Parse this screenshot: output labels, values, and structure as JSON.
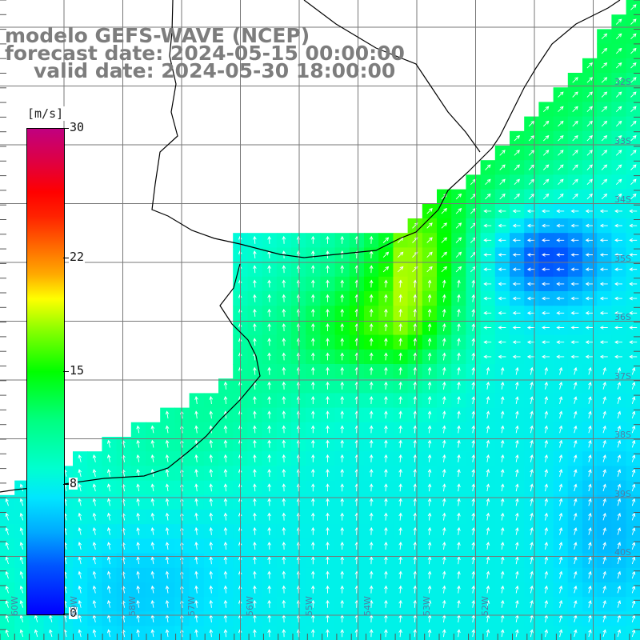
{
  "header": {
    "line1": "modelo GEFS-WAVE (NCEP)",
    "line2": "forecast date: 2024-05-15 00:00:00",
    "line3": "valid date: 2024-05-30 18:00:00"
  },
  "colorbar": {
    "unit": "[m/s]",
    "ticks": [
      {
        "label": "30",
        "value": 30
      },
      {
        "label": "22",
        "value": 22
      },
      {
        "label": "15",
        "value": 15
      },
      {
        "label": "8",
        "value": 8
      },
      {
        "label": "0",
        "value": 0
      }
    ],
    "range": [
      0,
      30
    ]
  },
  "map": {
    "lat_labels": [
      "32S",
      "33S",
      "34S",
      "35S",
      "36S",
      "37S",
      "38S",
      "39S",
      "40S"
    ],
    "lon_labels": [
      "60W",
      "59W",
      "58W",
      "57W",
      "56W",
      "55W",
      "54W",
      "53W",
      "52W"
    ],
    "colors": {
      "land": "#ffffff",
      "grid": "#777777",
      "coast": "#000000",
      "arrows": "#ffffff"
    }
  }
}
